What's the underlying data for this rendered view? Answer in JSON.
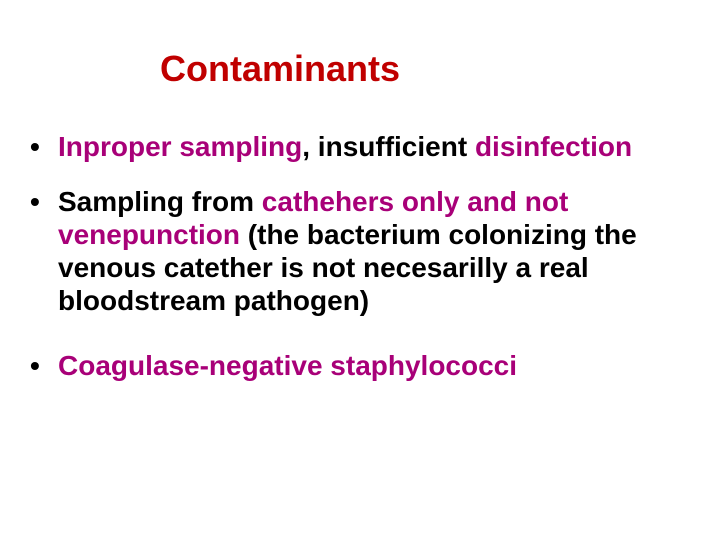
{
  "colors": {
    "title": "#c00000",
    "body_text": "#000000",
    "highlight": "#a80078",
    "background": "#ffffff"
  },
  "typography": {
    "font_family": "Arial",
    "title_fontsize_pt": 36,
    "body_fontsize_pt": 28,
    "title_weight": "bold",
    "body_weight": "bold"
  },
  "title": "Contaminants",
  "bullets": [
    {
      "runs": [
        {
          "t": "Inproper sampling",
          "hl": true
        },
        {
          "t": ", insufficient ",
          "hl": false
        },
        {
          "t": "disinfection",
          "hl": true
        }
      ]
    },
    {
      "runs": [
        {
          "t": "Sampling from ",
          "hl": false
        },
        {
          "t": "cathehers only and not venepunction",
          "hl": true
        },
        {
          "t": " (the bacterium colonizing the venous catether is not necesarilly a real bloodstream pathogen)",
          "hl": false
        }
      ]
    },
    {
      "runs": [
        {
          "t": "Coagulase-negative staphylococci",
          "hl": true
        }
      ]
    }
  ]
}
